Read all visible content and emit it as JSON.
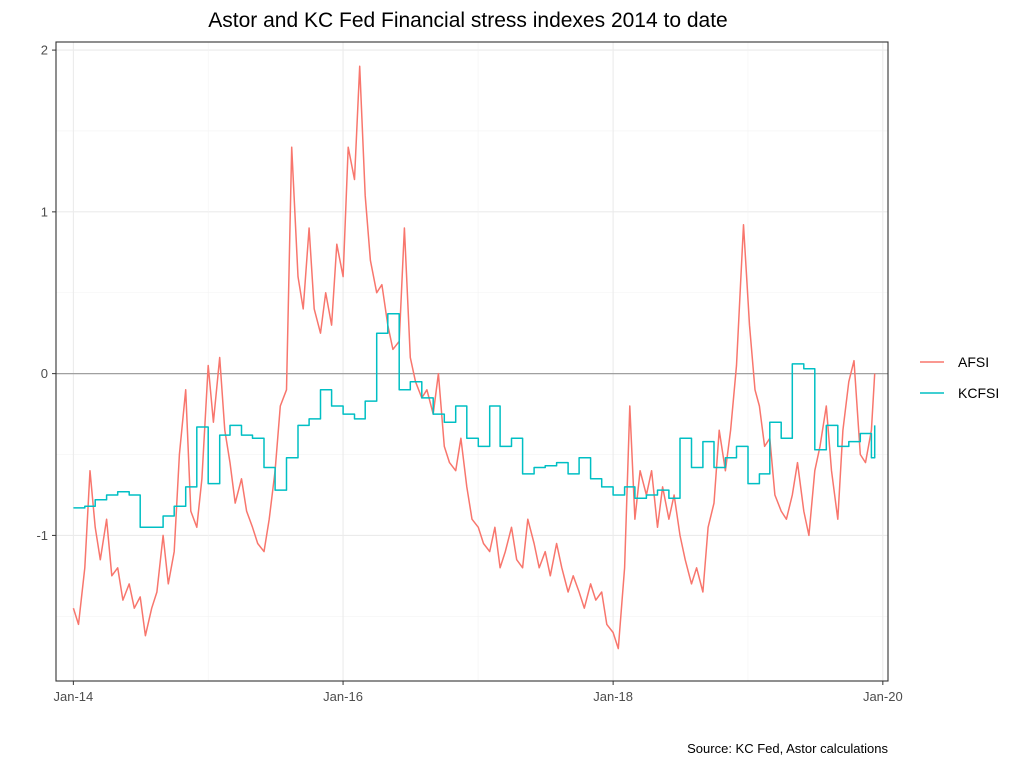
{
  "chart_data": {
    "type": "line",
    "title": "Astor and KC Fed Financial stress indexes 2014 to date",
    "caption": "Source: KC Fed, Astor calculations",
    "xlabel": "",
    "ylabel": "",
    "xlim": [
      "2013-11-15",
      "2020-01-15"
    ],
    "ylim": [
      -1.9,
      2.05
    ],
    "x_ticks": [
      {
        "date": "2014-01-01",
        "label": "Jan-14"
      },
      {
        "date": "2016-01-01",
        "label": "Jan-16"
      },
      {
        "date": "2018-01-01",
        "label": "Jan-18"
      },
      {
        "date": "2020-01-01",
        "label": "Jan-20"
      }
    ],
    "y_ticks": [
      {
        "value": -1,
        "label": "-1"
      },
      {
        "value": 0,
        "label": "0"
      },
      {
        "value": 1,
        "label": "1"
      },
      {
        "value": 2,
        "label": "2"
      }
    ],
    "zero_line": true,
    "grid": true,
    "legend_position": "right",
    "series": [
      {
        "name": "AFSI",
        "color": "#F8766D",
        "step": false,
        "points": [
          [
            "2014-01-01",
            -1.45
          ],
          [
            "2014-01-15",
            -1.55
          ],
          [
            "2014-02-01",
            -1.2
          ],
          [
            "2014-02-15",
            -0.6
          ],
          [
            "2014-03-01",
            -0.95
          ],
          [
            "2014-03-15",
            -1.15
          ],
          [
            "2014-04-01",
            -0.9
          ],
          [
            "2014-04-15",
            -1.25
          ],
          [
            "2014-05-01",
            -1.2
          ],
          [
            "2014-05-15",
            -1.4
          ],
          [
            "2014-06-01",
            -1.3
          ],
          [
            "2014-06-15",
            -1.45
          ],
          [
            "2014-07-01",
            -1.38
          ],
          [
            "2014-07-15",
            -1.62
          ],
          [
            "2014-08-01",
            -1.45
          ],
          [
            "2014-08-15",
            -1.35
          ],
          [
            "2014-09-01",
            -1.0
          ],
          [
            "2014-09-15",
            -1.3
          ],
          [
            "2014-10-01",
            -1.1
          ],
          [
            "2014-10-15",
            -0.5
          ],
          [
            "2014-11-01",
            -0.1
          ],
          [
            "2014-11-15",
            -0.85
          ],
          [
            "2014-12-01",
            -0.95
          ],
          [
            "2014-12-15",
            -0.65
          ],
          [
            "2015-01-01",
            0.05
          ],
          [
            "2015-01-15",
            -0.3
          ],
          [
            "2015-02-01",
            0.1
          ],
          [
            "2015-02-15",
            -0.35
          ],
          [
            "2015-03-01",
            -0.55
          ],
          [
            "2015-03-15",
            -0.8
          ],
          [
            "2015-04-01",
            -0.65
          ],
          [
            "2015-04-15",
            -0.85
          ],
          [
            "2015-05-01",
            -0.95
          ],
          [
            "2015-05-15",
            -1.05
          ],
          [
            "2015-06-01",
            -1.1
          ],
          [
            "2015-06-15",
            -0.9
          ],
          [
            "2015-07-01",
            -0.6
          ],
          [
            "2015-07-15",
            -0.2
          ],
          [
            "2015-08-01",
            -0.1
          ],
          [
            "2015-08-15",
            1.4
          ],
          [
            "2015-09-01",
            0.6
          ],
          [
            "2015-09-15",
            0.4
          ],
          [
            "2015-10-01",
            0.9
          ],
          [
            "2015-10-15",
            0.4
          ],
          [
            "2015-11-01",
            0.25
          ],
          [
            "2015-11-15",
            0.5
          ],
          [
            "2015-12-01",
            0.3
          ],
          [
            "2015-12-15",
            0.8
          ],
          [
            "2016-01-01",
            0.6
          ],
          [
            "2016-01-15",
            1.4
          ],
          [
            "2016-02-01",
            1.2
          ],
          [
            "2016-02-15",
            1.9
          ],
          [
            "2016-03-01",
            1.1
          ],
          [
            "2016-03-15",
            0.7
          ],
          [
            "2016-04-01",
            0.5
          ],
          [
            "2016-04-15",
            0.55
          ],
          [
            "2016-05-01",
            0.3
          ],
          [
            "2016-05-15",
            0.15
          ],
          [
            "2016-06-01",
            0.2
          ],
          [
            "2016-06-15",
            0.9
          ],
          [
            "2016-07-01",
            0.1
          ],
          [
            "2016-07-15",
            -0.05
          ],
          [
            "2016-08-01",
            -0.15
          ],
          [
            "2016-08-15",
            -0.1
          ],
          [
            "2016-09-01",
            -0.25
          ],
          [
            "2016-09-15",
            0.0
          ],
          [
            "2016-10-01",
            -0.45
          ],
          [
            "2016-10-15",
            -0.55
          ],
          [
            "2016-11-01",
            -0.6
          ],
          [
            "2016-11-15",
            -0.4
          ],
          [
            "2016-12-01",
            -0.7
          ],
          [
            "2016-12-15",
            -0.9
          ],
          [
            "2017-01-01",
            -0.95
          ],
          [
            "2017-01-15",
            -1.05
          ],
          [
            "2017-02-01",
            -1.1
          ],
          [
            "2017-02-15",
            -0.95
          ],
          [
            "2017-03-01",
            -1.2
          ],
          [
            "2017-03-15",
            -1.1
          ],
          [
            "2017-04-01",
            -0.95
          ],
          [
            "2017-04-15",
            -1.15
          ],
          [
            "2017-05-01",
            -1.2
          ],
          [
            "2017-05-15",
            -0.9
          ],
          [
            "2017-06-01",
            -1.05
          ],
          [
            "2017-06-15",
            -1.2
          ],
          [
            "2017-07-01",
            -1.1
          ],
          [
            "2017-07-15",
            -1.25
          ],
          [
            "2017-08-01",
            -1.05
          ],
          [
            "2017-08-15",
            -1.2
          ],
          [
            "2017-09-01",
            -1.35
          ],
          [
            "2017-09-15",
            -1.25
          ],
          [
            "2017-10-01",
            -1.35
          ],
          [
            "2017-10-15",
            -1.45
          ],
          [
            "2017-11-01",
            -1.3
          ],
          [
            "2017-11-15",
            -1.4
          ],
          [
            "2017-12-01",
            -1.35
          ],
          [
            "2017-12-15",
            -1.55
          ],
          [
            "2018-01-01",
            -1.6
          ],
          [
            "2018-01-15",
            -1.7
          ],
          [
            "2018-02-01",
            -1.2
          ],
          [
            "2018-02-15",
            -0.2
          ],
          [
            "2018-03-01",
            -0.9
          ],
          [
            "2018-03-15",
            -0.6
          ],
          [
            "2018-04-01",
            -0.75
          ],
          [
            "2018-04-15",
            -0.6
          ],
          [
            "2018-05-01",
            -0.95
          ],
          [
            "2018-05-15",
            -0.7
          ],
          [
            "2018-06-01",
            -0.9
          ],
          [
            "2018-06-15",
            -0.75
          ],
          [
            "2018-07-01",
            -1.0
          ],
          [
            "2018-07-15",
            -1.15
          ],
          [
            "2018-08-01",
            -1.3
          ],
          [
            "2018-08-15",
            -1.2
          ],
          [
            "2018-09-01",
            -1.35
          ],
          [
            "2018-09-15",
            -0.95
          ],
          [
            "2018-10-01",
            -0.8
          ],
          [
            "2018-10-15",
            -0.35
          ],
          [
            "2018-11-01",
            -0.6
          ],
          [
            "2018-11-15",
            -0.35
          ],
          [
            "2018-12-01",
            0.05
          ],
          [
            "2018-12-20",
            0.92
          ],
          [
            "2019-01-05",
            0.3
          ],
          [
            "2019-01-20",
            -0.1
          ],
          [
            "2019-02-01",
            -0.2
          ],
          [
            "2019-02-15",
            -0.45
          ],
          [
            "2019-03-01",
            -0.4
          ],
          [
            "2019-03-15",
            -0.75
          ],
          [
            "2019-04-01",
            -0.85
          ],
          [
            "2019-04-15",
            -0.9
          ],
          [
            "2019-05-01",
            -0.75
          ],
          [
            "2019-05-15",
            -0.55
          ],
          [
            "2019-06-01",
            -0.85
          ],
          [
            "2019-06-15",
            -1.0
          ],
          [
            "2019-07-01",
            -0.6
          ],
          [
            "2019-07-15",
            -0.45
          ],
          [
            "2019-08-01",
            -0.2
          ],
          [
            "2019-08-15",
            -0.6
          ],
          [
            "2019-09-01",
            -0.9
          ],
          [
            "2019-09-15",
            -0.35
          ],
          [
            "2019-10-01",
            -0.05
          ],
          [
            "2019-10-15",
            0.08
          ],
          [
            "2019-11-01",
            -0.5
          ],
          [
            "2019-11-15",
            -0.55
          ],
          [
            "2019-12-01",
            -0.35
          ],
          [
            "2019-12-10",
            0.0
          ]
        ]
      },
      {
        "name": "KCFSI",
        "color": "#00BFC4",
        "step": true,
        "points": [
          [
            "2014-01-01",
            -0.83
          ],
          [
            "2014-02-01",
            -0.82
          ],
          [
            "2014-03-01",
            -0.78
          ],
          [
            "2014-04-01",
            -0.75
          ],
          [
            "2014-05-01",
            -0.73
          ],
          [
            "2014-06-01",
            -0.75
          ],
          [
            "2014-07-01",
            -0.95
          ],
          [
            "2014-08-01",
            -0.95
          ],
          [
            "2014-09-01",
            -0.88
          ],
          [
            "2014-10-01",
            -0.82
          ],
          [
            "2014-11-01",
            -0.7
          ],
          [
            "2014-12-01",
            -0.33
          ],
          [
            "2015-01-01",
            -0.68
          ],
          [
            "2015-02-01",
            -0.38
          ],
          [
            "2015-03-01",
            -0.32
          ],
          [
            "2015-04-01",
            -0.38
          ],
          [
            "2015-05-01",
            -0.4
          ],
          [
            "2015-06-01",
            -0.58
          ],
          [
            "2015-07-01",
            -0.72
          ],
          [
            "2015-08-01",
            -0.52
          ],
          [
            "2015-09-01",
            -0.32
          ],
          [
            "2015-10-01",
            -0.28
          ],
          [
            "2015-11-01",
            -0.1
          ],
          [
            "2015-12-01",
            -0.2
          ],
          [
            "2016-01-01",
            -0.25
          ],
          [
            "2016-02-01",
            -0.28
          ],
          [
            "2016-03-01",
            -0.17
          ],
          [
            "2016-04-01",
            0.25
          ],
          [
            "2016-05-01",
            0.37
          ],
          [
            "2016-06-01",
            -0.1
          ],
          [
            "2016-07-01",
            -0.05
          ],
          [
            "2016-08-01",
            -0.15
          ],
          [
            "2016-09-01",
            -0.25
          ],
          [
            "2016-10-01",
            -0.3
          ],
          [
            "2016-11-01",
            -0.2
          ],
          [
            "2016-12-01",
            -0.4
          ],
          [
            "2017-01-01",
            -0.45
          ],
          [
            "2017-02-01",
            -0.2
          ],
          [
            "2017-03-01",
            -0.45
          ],
          [
            "2017-04-01",
            -0.4
          ],
          [
            "2017-05-01",
            -0.62
          ],
          [
            "2017-06-01",
            -0.58
          ],
          [
            "2017-07-01",
            -0.57
          ],
          [
            "2017-08-01",
            -0.55
          ],
          [
            "2017-09-01",
            -0.62
          ],
          [
            "2017-10-01",
            -0.52
          ],
          [
            "2017-11-01",
            -0.65
          ],
          [
            "2017-12-01",
            -0.7
          ],
          [
            "2018-01-01",
            -0.75
          ],
          [
            "2018-02-01",
            -0.7
          ],
          [
            "2018-03-01",
            -0.77
          ],
          [
            "2018-04-01",
            -0.75
          ],
          [
            "2018-05-01",
            -0.72
          ],
          [
            "2018-06-01",
            -0.77
          ],
          [
            "2018-07-01",
            -0.4
          ],
          [
            "2018-08-01",
            -0.58
          ],
          [
            "2018-09-01",
            -0.42
          ],
          [
            "2018-10-01",
            -0.58
          ],
          [
            "2018-11-01",
            -0.52
          ],
          [
            "2018-12-01",
            -0.45
          ],
          [
            "2019-01-01",
            -0.68
          ],
          [
            "2019-02-01",
            -0.62
          ],
          [
            "2019-03-01",
            -0.3
          ],
          [
            "2019-04-01",
            -0.4
          ],
          [
            "2019-05-01",
            0.06
          ],
          [
            "2019-06-01",
            0.03
          ],
          [
            "2019-07-01",
            -0.47
          ],
          [
            "2019-08-01",
            -0.32
          ],
          [
            "2019-09-01",
            -0.45
          ],
          [
            "2019-10-01",
            -0.42
          ],
          [
            "2019-11-01",
            -0.37
          ],
          [
            "2019-12-01",
            -0.52
          ],
          [
            "2019-12-10",
            -0.32
          ]
        ]
      }
    ]
  }
}
